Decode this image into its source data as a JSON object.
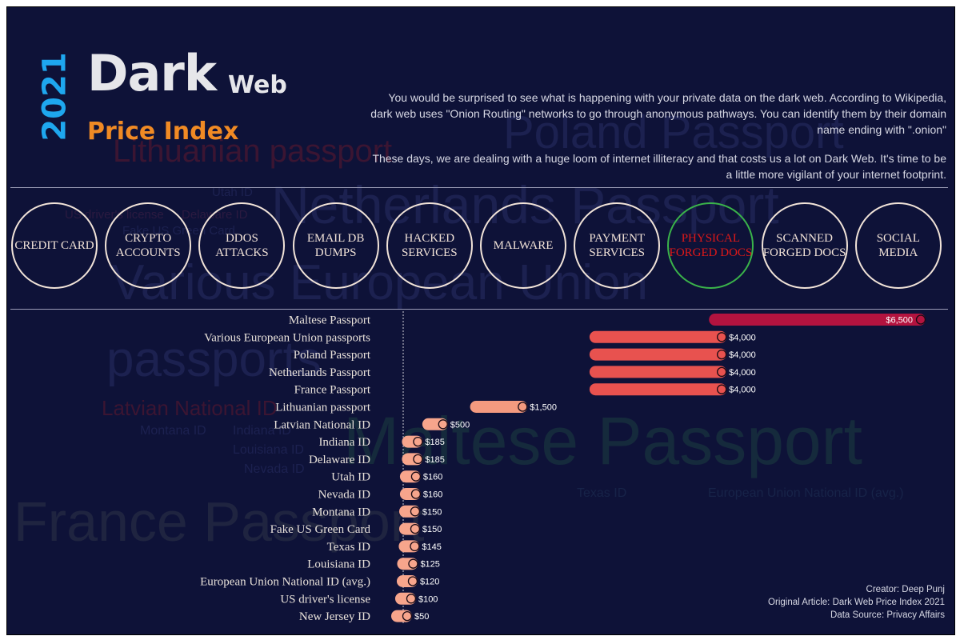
{
  "header": {
    "year": "2021",
    "title_main": "Dark",
    "title_secondary": "Web",
    "subtitle": "Price Index"
  },
  "intro": {
    "paragraph1": "You would be surprised to see what is happening with your private data on the dark web. According to Wikipedia, dark web uses \"Onion Routing\" networks to go through anonymous pathways. You can identify them by their domain name ending with \".onion\"",
    "paragraph2": "These days, we are dealing with a huge loom of internet illiteracy and that costs us a lot on Dark Web. It's time to be a little more vigilant of your internet footprint."
  },
  "categories": [
    {
      "label": "CREDIT CARD",
      "active": false
    },
    {
      "label": "CRYPTO ACCOUNTS",
      "active": false
    },
    {
      "label": "DDOS ATTACKS",
      "active": false
    },
    {
      "label": "EMAIL DB DUMPS",
      "active": false
    },
    {
      "label": "HACKED SERVICES",
      "active": false
    },
    {
      "label": "MALWARE",
      "active": false
    },
    {
      "label": "PAYMENT SERVICES",
      "active": false
    },
    {
      "label": "PHYSICAL FORGED DOCS",
      "active": true
    },
    {
      "label": "SCANNED FORGED DOCS",
      "active": false
    },
    {
      "label": "SOCIAL MEDIA",
      "active": false
    }
  ],
  "word_cloud": [
    {
      "text": "Poland Passport",
      "color": "#1c2150"
    },
    {
      "text": "Lithuanian passport",
      "color": "#3b1532"
    },
    {
      "text": "Netherlands Passport",
      "color": "#1c2150"
    },
    {
      "text": "Utah ID",
      "color": "#1c2150"
    },
    {
      "text": "US driver's license",
      "color": "#2b1a40"
    },
    {
      "text": "Delaware ID",
      "color": "#2b1a40"
    },
    {
      "text": "Fake US Green Card",
      "color": "#1c2150"
    },
    {
      "text": "Various European Union",
      "color": "#1c2150"
    },
    {
      "text": "passports",
      "color": "#1c2150"
    },
    {
      "text": "Latvian National ID",
      "color": "#3b1532"
    },
    {
      "text": "Montana ID",
      "color": "#1c2150"
    },
    {
      "text": "Indiana ID",
      "color": "#1c2150"
    },
    {
      "text": "Louisiana ID",
      "color": "#1c2150"
    },
    {
      "text": "Nevada ID",
      "color": "#1c2150"
    },
    {
      "text": "Maltese Passport",
      "color": "#152a3c"
    },
    {
      "text": "Texas ID",
      "color": "#172348"
    },
    {
      "text": "European Union National ID (avg.)",
      "color": "#172348"
    },
    {
      "text": "France Passport",
      "color": "#1f2440"
    }
  ],
  "chart_data": {
    "type": "bar",
    "orientation": "horizontal",
    "categories": [
      "Maltese Passport",
      "Various European Union passports",
      "Poland Passport",
      "Netherlands Passport",
      "France Passport",
      "Lithuanian passport",
      "Latvian National ID",
      "Indiana ID",
      "Delaware ID",
      "Utah ID",
      "Nevada ID",
      "Montana ID",
      "Fake US Green Card",
      "Texas ID",
      "Louisiana ID",
      "European Union National ID (avg.)",
      "US driver's license",
      "New Jersey ID"
    ],
    "values": [
      6500,
      4000,
      4000,
      4000,
      4000,
      1500,
      500,
      185,
      185,
      160,
      160,
      150,
      150,
      145,
      125,
      120,
      100,
      50
    ],
    "data_labels": [
      "$6,500",
      "$4,000",
      "$4,000",
      "$4,000",
      "$4,000",
      "$1,500",
      "$500",
      "$185",
      "$185",
      "$160",
      "$160",
      "$150",
      "$150",
      "$145",
      "$125",
      "$120",
      "$100",
      "$50"
    ],
    "value_prefix": "$",
    "xlim": [
      0,
      6500
    ],
    "bar_colors": [
      "#b3133f",
      "#e8524f",
      "#e8524f",
      "#e8524f",
      "#e8524f",
      "#f49a7f",
      "#f7a58c",
      "#f7a58c",
      "#f7a58c",
      "#f7a58c",
      "#f7a58c",
      "#f7a58c",
      "#f7a58c",
      "#f7a58c",
      "#f7a58c",
      "#f7a58c",
      "#f7a58c",
      "#f7a58c"
    ],
    "grid": false,
    "title": "",
    "xlabel": "",
    "ylabel": ""
  },
  "credits": {
    "creator": "Creator: Deep Punj",
    "article": "Original Article: Dark Web Price Index 2021",
    "source": "Data Source: Privacy Affairs"
  }
}
